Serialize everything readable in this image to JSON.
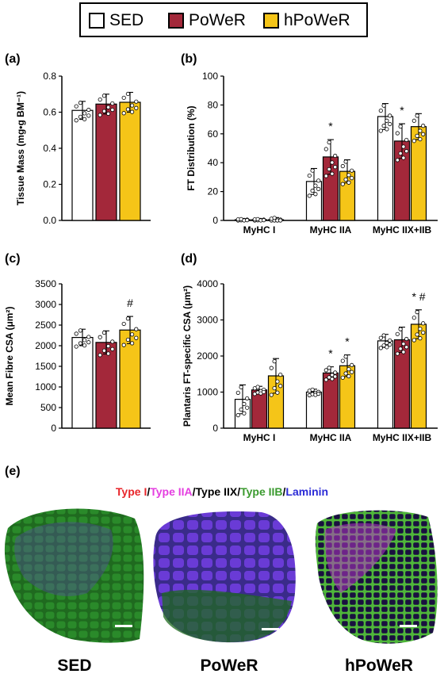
{
  "legend": {
    "items": [
      {
        "label": "SED",
        "color": "#ffffff"
      },
      {
        "label": "PoWeR",
        "color": "#a3283a"
      },
      {
        "label": "hPoWeR",
        "color": "#f5c518"
      }
    ]
  },
  "panels": {
    "a": "(a)",
    "b": "(b)",
    "c": "(c)",
    "d": "(d)",
    "e": "(e)"
  },
  "chart_data": [
    {
      "id": "a",
      "type": "bar",
      "ylabel": "Tissue Mass (mg•g BM⁻¹)",
      "ylim": [
        0,
        0.8
      ],
      "yticks": [
        0.0,
        0.2,
        0.4,
        0.6,
        0.8
      ],
      "ytick_labels": [
        "0.0",
        "0.2",
        "0.4",
        "0.6",
        "0.8"
      ],
      "categories": [
        ""
      ],
      "series": [
        {
          "name": "SED",
          "values": [
            0.61
          ],
          "err": [
            0.05
          ]
        },
        {
          "name": "PoWeR",
          "values": [
            0.645
          ],
          "err": [
            0.055
          ]
        },
        {
          "name": "hPoWeR",
          "values": [
            0.655
          ],
          "err": [
            0.055
          ]
        }
      ],
      "markers": []
    },
    {
      "id": "b",
      "type": "bar",
      "ylabel": "FT Distribution (%)",
      "ylim": [
        0,
        100
      ],
      "yticks": [
        0,
        20,
        40,
        60,
        80,
        100
      ],
      "ytick_labels": [
        "0",
        "20",
        "40",
        "60",
        "80",
        "100"
      ],
      "categories": [
        "MyHC I",
        "MyHC IIA",
        "MyHC IIX+IIB"
      ],
      "series": [
        {
          "name": "SED",
          "values": [
            0.5,
            27,
            72
          ],
          "err": [
            0.5,
            9,
            9
          ]
        },
        {
          "name": "PoWeR",
          "values": [
            0.5,
            44,
            55
          ],
          "err": [
            0.5,
            12,
            12
          ]
        },
        {
          "name": "hPoWeR",
          "values": [
            0.5,
            34,
            65
          ],
          "err": [
            1.5,
            8,
            9
          ]
        }
      ],
      "markers": [
        {
          "cat": 1,
          "series": 1,
          "text": "*"
        },
        {
          "cat": 2,
          "series": 1,
          "text": "*"
        }
      ]
    },
    {
      "id": "c",
      "type": "bar",
      "ylabel": "Mean Fibre CSA (μm²)",
      "ylim": [
        0,
        3500
      ],
      "yticks": [
        0,
        500,
        1000,
        1500,
        2000,
        2500,
        3000,
        3500
      ],
      "ytick_labels": [
        "0",
        "500",
        "1000",
        "1500",
        "2000",
        "2500",
        "3000",
        "3500"
      ],
      "categories": [
        ""
      ],
      "series": [
        {
          "name": "SED",
          "values": [
            2200
          ],
          "err": [
            200
          ]
        },
        {
          "name": "PoWeR",
          "values": [
            2080
          ],
          "err": [
            280
          ]
        },
        {
          "name": "hPoWeR",
          "values": [
            2380
          ],
          "err": [
            330
          ]
        }
      ],
      "markers": [
        {
          "cat": 0,
          "series": 2,
          "text": "#"
        }
      ]
    },
    {
      "id": "d",
      "type": "bar",
      "ylabel": "Plantaris FT-specific CSA (μm²)",
      "ylim": [
        0,
        4000
      ],
      "yticks": [
        0,
        1000,
        2000,
        3000,
        4000
      ],
      "ytick_labels": [
        "0",
        "1000",
        "2000",
        "3000",
        "4000"
      ],
      "categories": [
        "MyHC I",
        "MyHC IIA",
        "MyHC IIX+IIB"
      ],
      "series": [
        {
          "name": "SED",
          "values": [
            800,
            1000,
            2420
          ],
          "err": [
            400,
            80,
            180
          ]
        },
        {
          "name": "PoWeR",
          "values": [
            1060,
            1530,
            2450
          ],
          "err": [
            100,
            170,
            350
          ]
        },
        {
          "name": "hPoWeR",
          "values": [
            1450,
            1730,
            2880
          ],
          "err": [
            480,
            300,
            400
          ]
        }
      ],
      "markers": [
        {
          "cat": 1,
          "series": 1,
          "text": "*"
        },
        {
          "cat": 1,
          "series": 2,
          "text": "*"
        },
        {
          "cat": 2,
          "series": 2,
          "text": "* #"
        }
      ]
    }
  ],
  "images": {
    "title_parts": [
      {
        "text": "Type I",
        "color": "#e8262b"
      },
      {
        "text": "/",
        "color": "#000000"
      },
      {
        "text": "Type IIA",
        "color": "#e43ee0"
      },
      {
        "text": "/Type IIX/",
        "color": "#000000"
      },
      {
        "text": "Type IIB",
        "color": "#3a9a2e"
      },
      {
        "text": "/",
        "color": "#000000"
      },
      {
        "text": "Laminin",
        "color": "#2a2ad6"
      }
    ],
    "labels": [
      "SED",
      "PoWeR",
      "hPoWeR"
    ]
  }
}
